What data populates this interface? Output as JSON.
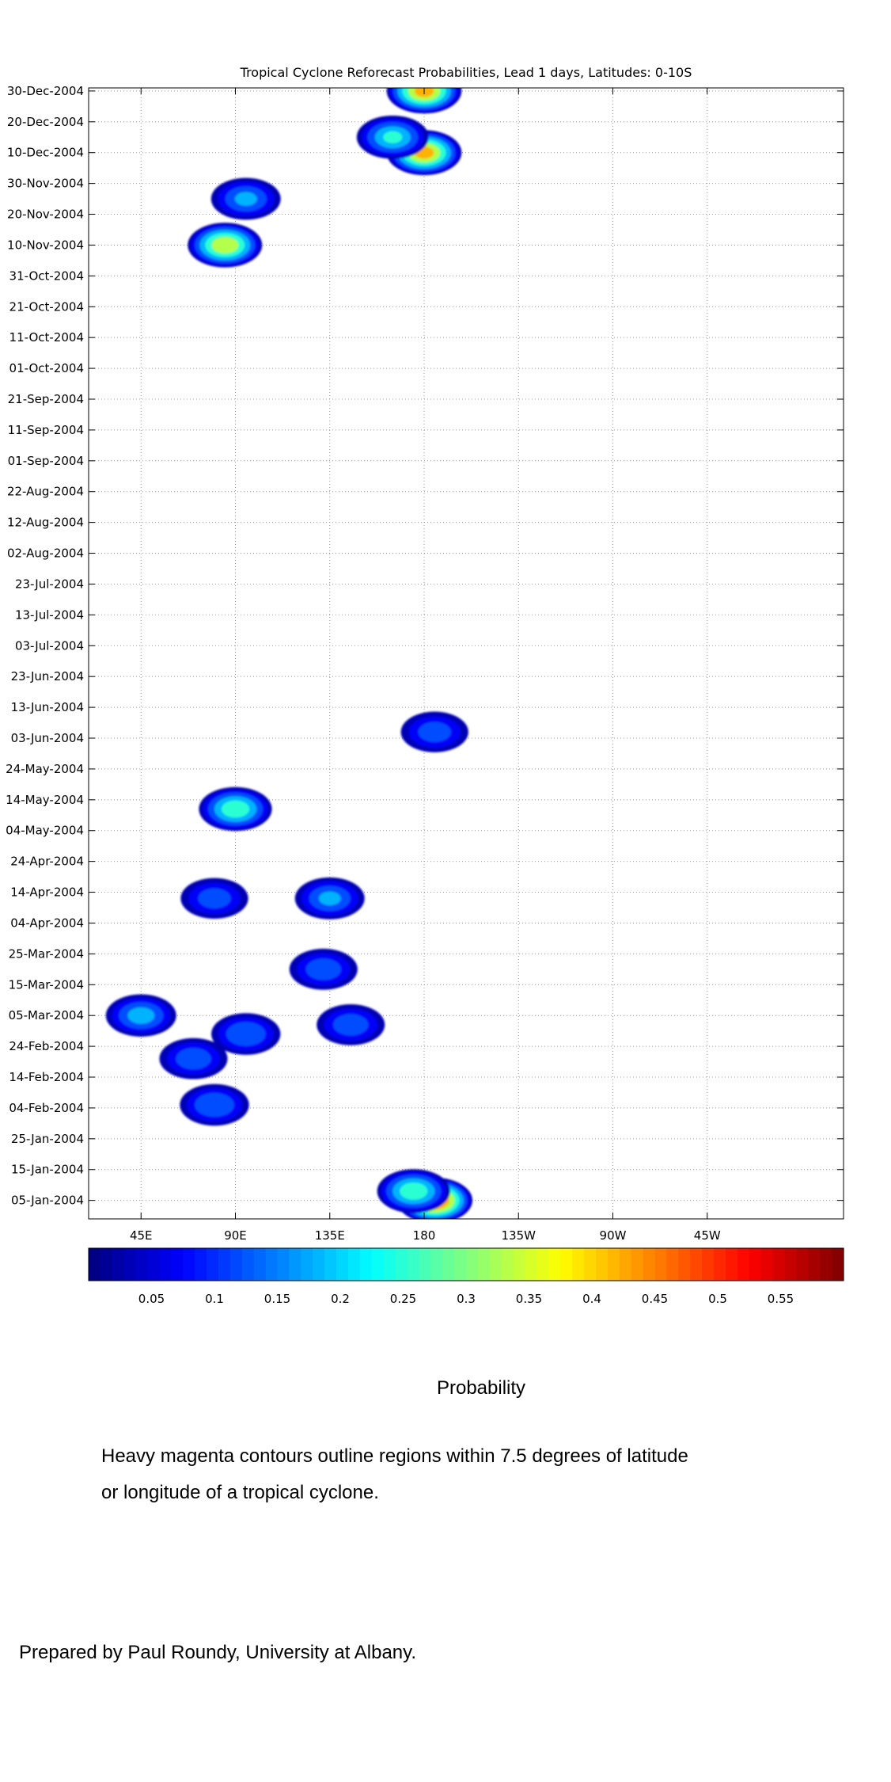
{
  "chart_data": {
    "type": "heatmap",
    "title": "Tropical Cyclone Reforecast Probabilities, Lead 1 days, Latitudes: 0-10S",
    "x_axis": {
      "range_deg_east": [
        20,
        380
      ],
      "tick_values_deg_east": [
        45,
        90,
        135,
        180,
        225,
        270,
        315
      ],
      "tick_labels": [
        "45E",
        "90E",
        "135E",
        "180",
        "135W",
        "90W",
        "45W"
      ]
    },
    "y_axis": {
      "range": [
        "2004-01-01",
        "2004-12-31"
      ],
      "ticks": [
        {
          "date": "2004-01-05",
          "label": "05-Jan-2004"
        },
        {
          "date": "2004-01-15",
          "label": "15-Jan-2004"
        },
        {
          "date": "2004-01-25",
          "label": "25-Jan-2004"
        },
        {
          "date": "2004-02-04",
          "label": "04-Feb-2004"
        },
        {
          "date": "2004-02-14",
          "label": "14-Feb-2004"
        },
        {
          "date": "2004-02-24",
          "label": "24-Feb-2004"
        },
        {
          "date": "2004-03-05",
          "label": "05-Mar-2004"
        },
        {
          "date": "2004-03-15",
          "label": "15-Mar-2004"
        },
        {
          "date": "2004-03-25",
          "label": "25-Mar-2004"
        },
        {
          "date": "2004-04-04",
          "label": "04-Apr-2004"
        },
        {
          "date": "2004-04-14",
          "label": "14-Apr-2004"
        },
        {
          "date": "2004-04-24",
          "label": "24-Apr-2004"
        },
        {
          "date": "2004-05-04",
          "label": "04-May-2004"
        },
        {
          "date": "2004-05-14",
          "label": "14-May-2004"
        },
        {
          "date": "2004-05-24",
          "label": "24-May-2004"
        },
        {
          "date": "2004-06-03",
          "label": "03-Jun-2004"
        },
        {
          "date": "2004-06-13",
          "label": "13-Jun-2004"
        },
        {
          "date": "2004-06-23",
          "label": "23-Jun-2004"
        },
        {
          "date": "2004-07-03",
          "label": "03-Jul-2004"
        },
        {
          "date": "2004-07-13",
          "label": "13-Jul-2004"
        },
        {
          "date": "2004-07-23",
          "label": "23-Jul-2004"
        },
        {
          "date": "2004-08-02",
          "label": "02-Aug-2004"
        },
        {
          "date": "2004-08-12",
          "label": "12-Aug-2004"
        },
        {
          "date": "2004-08-22",
          "label": "22-Aug-2004"
        },
        {
          "date": "2004-09-01",
          "label": "01-Sep-2004"
        },
        {
          "date": "2004-09-11",
          "label": "11-Sep-2004"
        },
        {
          "date": "2004-09-21",
          "label": "21-Sep-2004"
        },
        {
          "date": "2004-10-01",
          "label": "01-Oct-2004"
        },
        {
          "date": "2004-10-11",
          "label": "11-Oct-2004"
        },
        {
          "date": "2004-10-21",
          "label": "21-Oct-2004"
        },
        {
          "date": "2004-10-31",
          "label": "31-Oct-2004"
        },
        {
          "date": "2004-11-10",
          "label": "10-Nov-2004"
        },
        {
          "date": "2004-11-20",
          "label": "20-Nov-2004"
        },
        {
          "date": "2004-11-30",
          "label": "30-Nov-2004"
        },
        {
          "date": "2004-12-10",
          "label": "10-Dec-2004"
        },
        {
          "date": "2004-12-20",
          "label": "20-Dec-2004"
        },
        {
          "date": "2004-12-30",
          "label": "30-Dec-2004"
        }
      ]
    },
    "grid": true,
    "colorbar": {
      "label": "Probability",
      "range": [
        0,
        0.6
      ],
      "tick_values": [
        0.05,
        0.1,
        0.15,
        0.2,
        0.25,
        0.3,
        0.35,
        0.4,
        0.45,
        0.5,
        0.55
      ],
      "tick_labels": [
        "0.05",
        "0.1",
        "0.15",
        "0.2",
        "0.25",
        "0.3",
        "0.35",
        "0.4",
        "0.45",
        "0.5",
        "0.55"
      ]
    },
    "probability_features": [
      {
        "lon": 185,
        "date": "2004-01-05",
        "peak": 0.55
      },
      {
        "lon": 175,
        "date": "2004-01-08",
        "peak": 0.3
      },
      {
        "lon": 80,
        "date": "2004-02-05",
        "peak": 0.17
      },
      {
        "lon": 70,
        "date": "2004-02-20",
        "peak": 0.15
      },
      {
        "lon": 95,
        "date": "2004-02-28",
        "peak": 0.17
      },
      {
        "lon": 45,
        "date": "2004-03-05",
        "peak": 0.2
      },
      {
        "lon": 145,
        "date": "2004-03-02",
        "peak": 0.15
      },
      {
        "lon": 132,
        "date": "2004-03-20",
        "peak": 0.15
      },
      {
        "lon": 135,
        "date": "2004-04-12",
        "peak": 0.18
      },
      {
        "lon": 80,
        "date": "2004-04-12",
        "peak": 0.14
      },
      {
        "lon": 90,
        "date": "2004-05-11",
        "peak": 0.3
      },
      {
        "lon": 185,
        "date": "2004-06-05",
        "peak": 0.14
      },
      {
        "lon": 85,
        "date": "2004-11-10",
        "peak": 0.4
      },
      {
        "lon": 95,
        "date": "2004-11-25",
        "peak": 0.18
      },
      {
        "lon": 180,
        "date": "2004-12-10",
        "peak": 0.45
      },
      {
        "lon": 165,
        "date": "2004-12-15",
        "peak": 0.25
      },
      {
        "lon": 180,
        "date": "2004-12-30",
        "peak": 0.45
      }
    ],
    "cyclone_contour_color": "#ff33ff",
    "probability_colormap": "jet"
  },
  "caption": {
    "line1": "Heavy magenta contours outline regions within 7.5 degrees of latitude",
    "line2": "or longitude of a tropical cyclone."
  },
  "credit": "Prepared by Paul Roundy, University at Albany."
}
